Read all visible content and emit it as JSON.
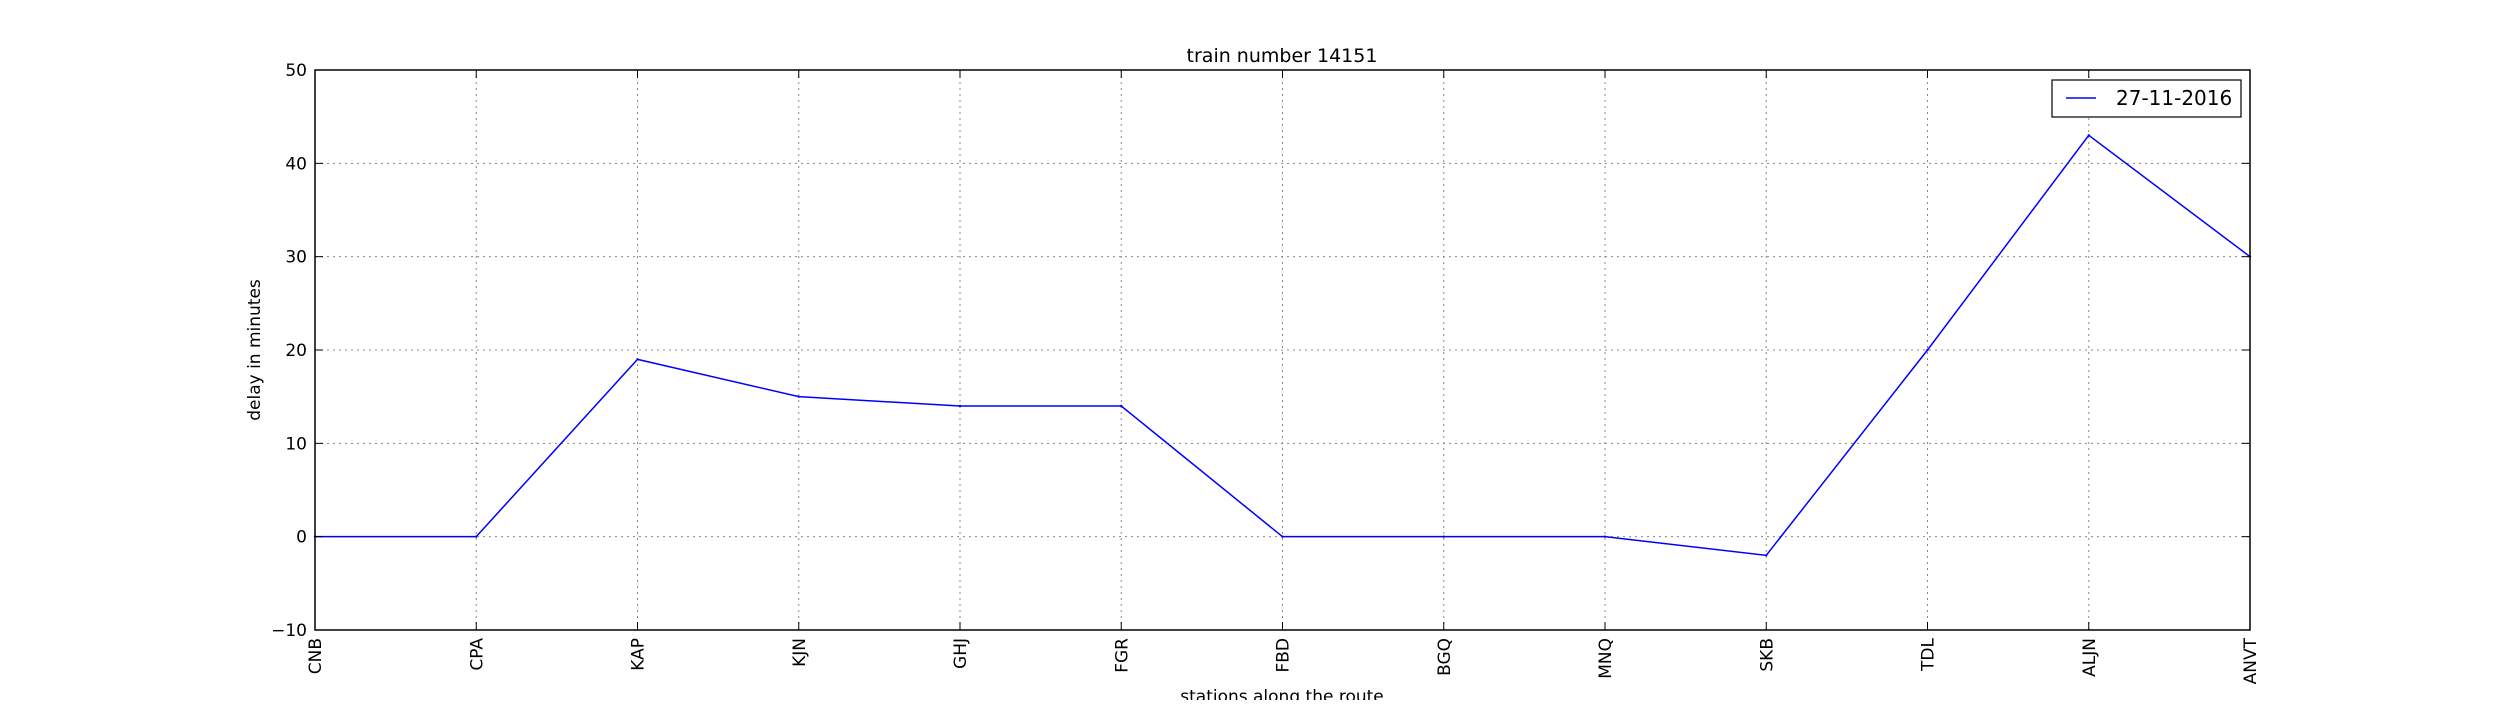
{
  "chart_data": {
    "type": "line",
    "title": "train number 14151",
    "xlabel": "stations along the route",
    "ylabel": "delay in minutes",
    "categories": [
      "CNB",
      "CPA",
      "KAP",
      "KJN",
      "GHJ",
      "FGR",
      "FBD",
      "BGQ",
      "MNQ",
      "SKB",
      "TDL",
      "ALJN",
      "ANVT"
    ],
    "series": [
      {
        "name": "27-11-2016",
        "values": [
          0,
          0,
          19,
          15,
          14,
          14,
          0,
          0,
          0,
          -2,
          20,
          43,
          30
        ],
        "color": "#0000ff"
      }
    ],
    "ylim": [
      -10,
      50
    ],
    "yticks": [
      -10,
      0,
      10,
      20,
      30,
      40,
      50
    ],
    "grid": true,
    "legend_position": "top-right"
  }
}
